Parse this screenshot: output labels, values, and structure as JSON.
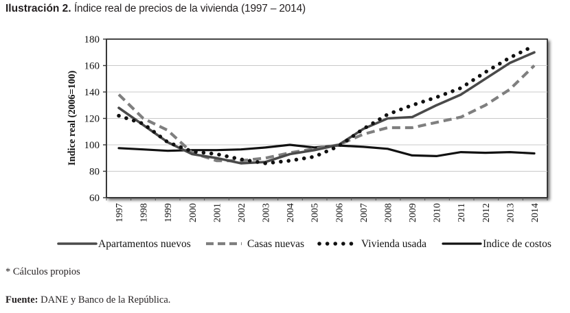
{
  "caption": {
    "label": "Ilustración 2.",
    "title": "Índice real de precios de la vivienda (1997 – 2014)"
  },
  "footnote": "* Cálculos propios",
  "source": {
    "label": "Fuente:",
    "text": "DANE y Banco de la República."
  },
  "chart_data": {
    "type": "line",
    "title": "Índice real de precios de la vivienda (1997 – 2014)",
    "xlabel": "",
    "ylabel": "Indice real (2006=100)",
    "ylim": [
      60,
      180
    ],
    "yticks": [
      60,
      80,
      100,
      120,
      140,
      160,
      180
    ],
    "grid": true,
    "legend_position": "bottom",
    "categories": [
      "1997",
      "1998",
      "1999",
      "2000",
      "2001",
      "2002",
      "2003",
      "2004",
      "2005",
      "2006",
      "2007",
      "2008",
      "2009",
      "2010",
      "2011",
      "2012",
      "2013",
      "2014"
    ],
    "series": [
      {
        "name": "Apartamentos nuevos",
        "style": "solid",
        "color": "#4a4a4a",
        "values": [
          128,
          115,
          102,
          93,
          90,
          86,
          87,
          93,
          96,
          100,
          112,
          120,
          121,
          130,
          138,
          150,
          162,
          170
        ]
      },
      {
        "name": "Casas nuevas",
        "style": "dashed",
        "color": "#7f7f7f",
        "values": [
          138,
          120,
          111,
          94,
          88,
          88,
          90,
          94,
          97,
          100,
          108,
          113,
          113,
          117,
          121,
          130,
          142,
          160
        ]
      },
      {
        "name": "Vivienda usada",
        "style": "dotted",
        "color": "#111111",
        "values": [
          122,
          116,
          102,
          95,
          93,
          89,
          86,
          88,
          91,
          99,
          112,
          123,
          130,
          136,
          143,
          155,
          166,
          175
        ]
      },
      {
        "name": "Indice de costos",
        "style": "solid-thick",
        "color": "#111111",
        "values": [
          97.5,
          96.5,
          95.5,
          96,
          96,
          96.5,
          98,
          100,
          98,
          99.5,
          98.5,
          97,
          92,
          91.5,
          94.5,
          94,
          94.5,
          93.5
        ]
      }
    ]
  }
}
